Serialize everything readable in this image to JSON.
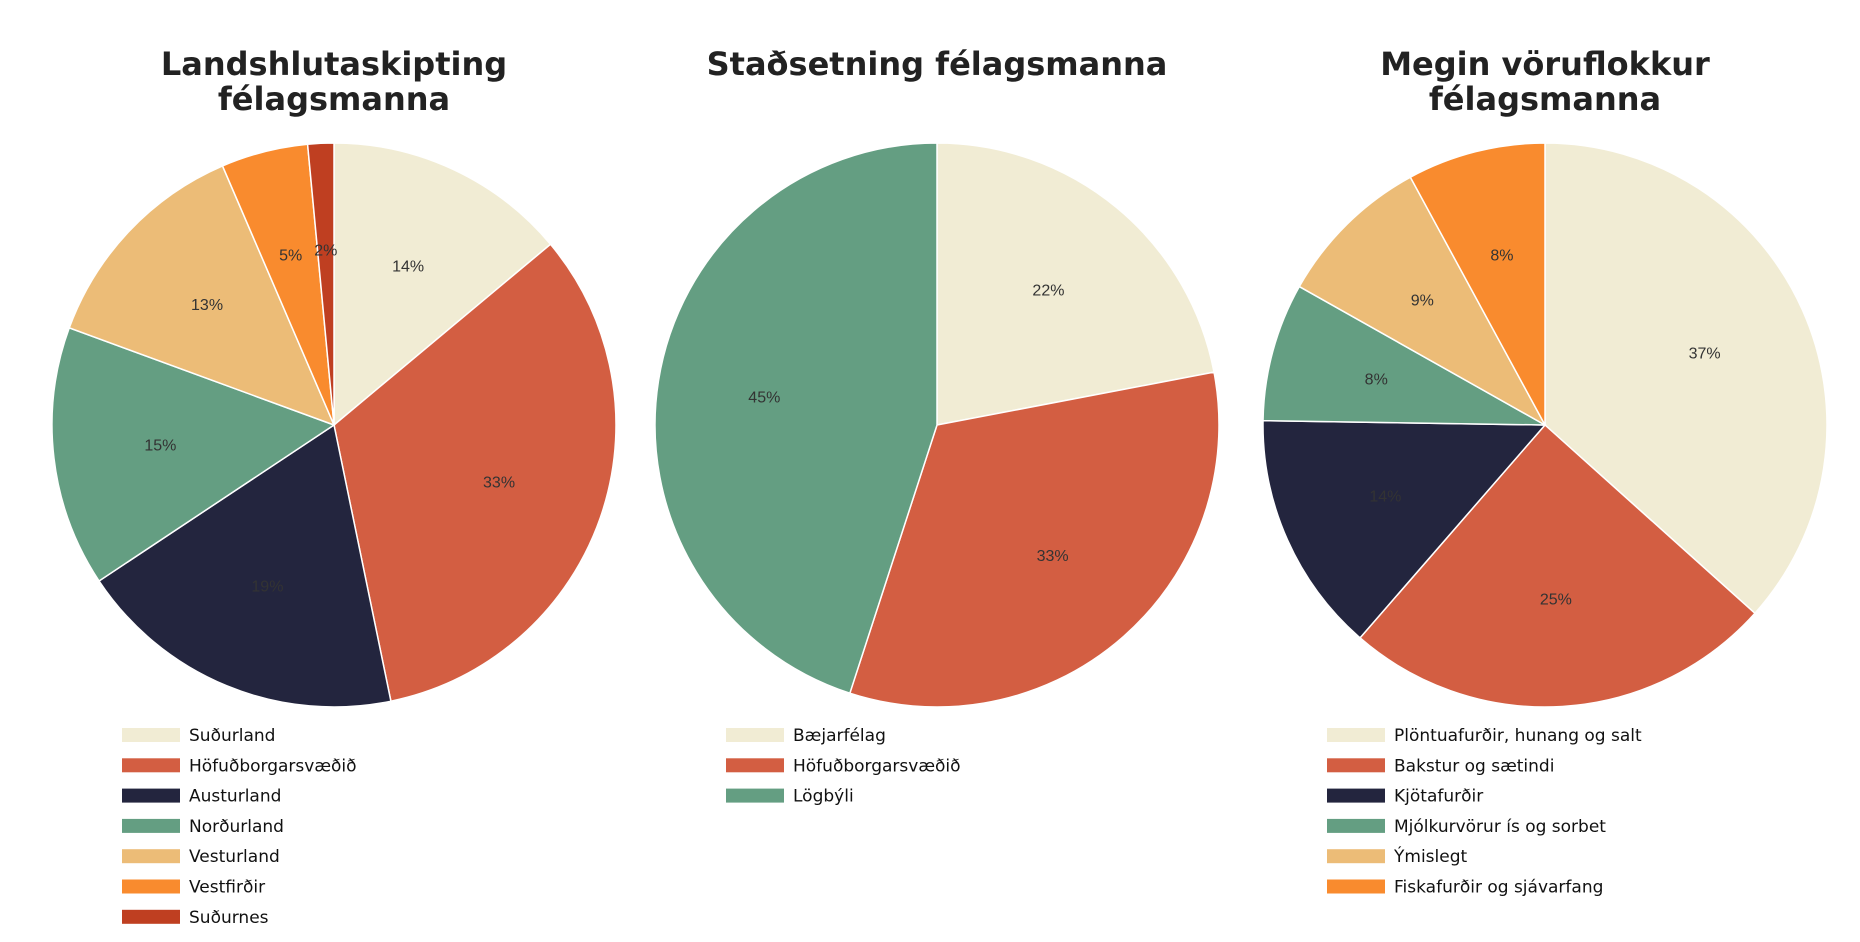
{
  "colors": {
    "cream": "#f1ecd4",
    "red": "#d35e42",
    "navy": "#23253e",
    "green": "#649e82",
    "tan": "#ecbc77",
    "orange": "#f98b2e",
    "darkred": "#bf3f21"
  },
  "chart_data": [
    {
      "type": "pie",
      "title": [
        "Landshlutaskipting",
        "félagsmanna"
      ],
      "legend_position": "bottom",
      "slices": [
        {
          "label": "Suðurland",
          "value": 14,
          "text": "14%",
          "color": "#f1ecd4"
        },
        {
          "label": "Höfuðborgarsvæðið",
          "value": 33,
          "text": "33%",
          "color": "#d35e42"
        },
        {
          "label": "Austurland",
          "value": 19,
          "text": "19%",
          "color": "#23253e"
        },
        {
          "label": "Norðurland",
          "value": 15,
          "text": "15%",
          "color": "#649e82"
        },
        {
          "label": "Vesturland",
          "value": 13,
          "text": "13%",
          "color": "#ecbc77"
        },
        {
          "label": "Vestfirðir",
          "value": 5,
          "text": "5%",
          "color": "#f98b2e"
        },
        {
          "label": "Suðurnes",
          "value": 1.5,
          "text": "2%",
          "color": "#bf3f21"
        }
      ]
    },
    {
      "type": "pie",
      "title": [
        "Staðsetning félagsmanna"
      ],
      "legend_position": "bottom",
      "slices": [
        {
          "label": "Bæjarfélag",
          "value": 22,
          "text": "22%",
          "color": "#f1ecd4"
        },
        {
          "label": "Höfuðborgarsvæðið",
          "value": 33,
          "text": "33%",
          "color": "#d35e42"
        },
        {
          "label": "Lögbýli",
          "value": 45,
          "text": "45%",
          "color": "#649e82"
        }
      ]
    },
    {
      "type": "pie",
      "title": [
        "Megin vöruflokkur",
        "félagsmanna"
      ],
      "legend_position": "bottom",
      "slices": [
        {
          "label": "Plöntuafurðir, hunang og salt",
          "value": 37,
          "text": "37%",
          "color": "#f1ecd4"
        },
        {
          "label": "Bakstur og sætindi",
          "value": 25,
          "text": "25%",
          "color": "#d35e42"
        },
        {
          "label": "Kjötafurðir",
          "value": 14,
          "text": "14%",
          "color": "#23253e"
        },
        {
          "label": "Mjólkurvörur ís og sorbet",
          "value": 8,
          "text": "8%",
          "color": "#649e82"
        },
        {
          "label": "Ýmislegt",
          "value": 9,
          "text": "9%",
          "color": "#ecbc77"
        },
        {
          "label": "Fiskafurðir og sjávarfang",
          "value": 8,
          "text": "8%",
          "color": "#f98b2e"
        }
      ]
    }
  ]
}
